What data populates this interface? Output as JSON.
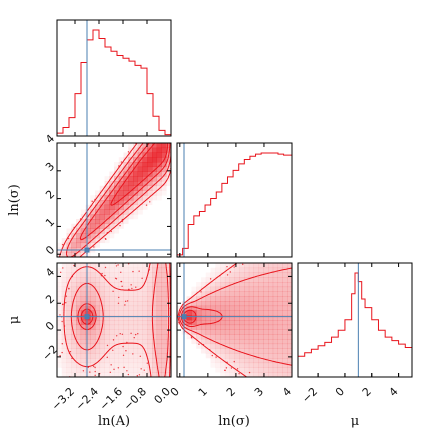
{
  "chart_data": {
    "type": "corner",
    "parameters": [
      {
        "key": "lnA",
        "label": "ln(A)",
        "range": [
          -3.8,
          0.0
        ],
        "ticks": [
          -3.2,
          -2.4,
          -1.6,
          -0.8,
          0.0
        ],
        "tick_labels": [
          "−3.2",
          "−2.4",
          "−1.6",
          "−0.8",
          "0.0"
        ],
        "truth": -2.8
      },
      {
        "key": "lnsigma",
        "label": "ln(σ)",
        "range": [
          -0.1,
          4.0
        ],
        "ticks": [
          0,
          1,
          2,
          3,
          4
        ],
        "tick_labels": [
          "0",
          "1",
          "2",
          "3",
          "4"
        ],
        "truth": 0.15
      },
      {
        "key": "mu",
        "label": "μ",
        "range": [
          -3.5,
          5.0
        ],
        "ticks": [
          -2,
          0,
          2,
          4
        ],
        "tick_labels": [
          "−2",
          "0",
          "2",
          "4"
        ],
        "truth": 1.0
      }
    ],
    "marginals": {
      "lnA": {
        "bin_edges": [
          -3.8,
          -3.6,
          -3.4,
          -3.2,
          -3.0,
          -2.8,
          -2.6,
          -2.4,
          -2.2,
          -2.0,
          -1.8,
          -1.6,
          -1.4,
          -1.2,
          -1.0,
          -0.8,
          -0.6,
          -0.4,
          -0.2,
          0.0
        ],
        "counts": [
          2,
          6,
          13,
          30,
          52,
          68,
          75,
          69,
          63,
          60,
          57,
          55,
          53,
          50,
          48,
          30,
          14,
          4,
          1
        ]
      },
      "lnsigma": {
        "bin_edges": [
          -0.1,
          0.1,
          0.3,
          0.5,
          0.7,
          0.9,
          1.1,
          1.3,
          1.5,
          1.7,
          1.9,
          2.1,
          2.3,
          2.5,
          2.7,
          2.9,
          3.1,
          3.3,
          3.5,
          3.7,
          4.0
        ],
        "counts": [
          2,
          8,
          30,
          38,
          42,
          48,
          54,
          60,
          68,
          74,
          80,
          86,
          90,
          93,
          95,
          96,
          96,
          96,
          95,
          94
        ]
      },
      "mu": {
        "bin_edges": [
          -3.5,
          -3.0,
          -2.5,
          -2.0,
          -1.5,
          -1.0,
          -0.5,
          0.0,
          0.5,
          0.75,
          1.0,
          1.25,
          1.5,
          2.0,
          2.5,
          3.0,
          3.5,
          4.0,
          4.5,
          5.0
        ],
        "counts": [
          12,
          14,
          16,
          18,
          20,
          23,
          27,
          33,
          48,
          60,
          55,
          45,
          40,
          33,
          27,
          23,
          21,
          19,
          17
        ]
      }
    },
    "joint": [
      {
        "x": "lnA",
        "y": "lnsigma",
        "shape": "diagonal-band",
        "peak": [
          -0.9,
          3.7
        ]
      },
      {
        "x": "lnA",
        "y": "mu",
        "shape": "vertical-band",
        "peak": [
          -2.8,
          1.0
        ]
      },
      {
        "x": "lnsigma",
        "y": "mu",
        "shape": "horizontal-fan",
        "peak": [
          0.4,
          1.0
        ]
      }
    ],
    "colors": {
      "density": "#e8131b",
      "truth": "#4a7fb0",
      "axes": "#000000"
    }
  }
}
